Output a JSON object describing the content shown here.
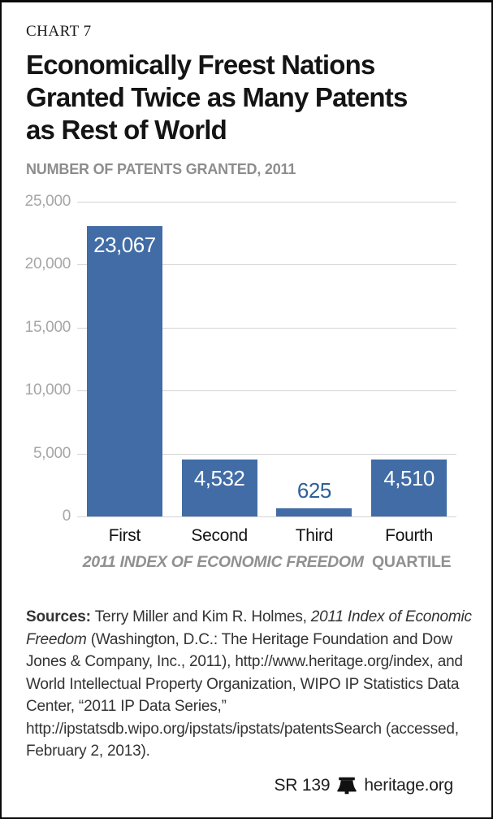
{
  "card": {
    "kicker": "CHART 7",
    "title_lines": [
      "Economically Freest Nations",
      "Granted Twice as Many Patents",
      "as Rest of World"
    ],
    "subtitle": "NUMBER OF PATENTS GRANTED, 2011"
  },
  "chart_data": {
    "type": "bar",
    "title": "Economically Freest Nations Granted Twice as Many Patents as Rest of World",
    "subtitle": "NUMBER OF PATENTS GRANTED, 2011",
    "categories": [
      "First",
      "Second",
      "Third",
      "Fourth"
    ],
    "values": [
      23067,
      4532,
      625,
      4510
    ],
    "value_labels": [
      "23,067",
      "4,532",
      "625",
      "4,510"
    ],
    "xlabel_italic": "2011 INDEX OF ECONOMIC FREEDOM",
    "xlabel_regular": "QUARTILE",
    "ylabel": "",
    "ylim": [
      0,
      25000
    ],
    "yticks": [
      {
        "value": 25000,
        "label": "25,000"
      },
      {
        "value": 20000,
        "label": "20,000"
      },
      {
        "value": 15000,
        "label": "15,000"
      },
      {
        "value": 10000,
        "label": "10,000"
      },
      {
        "value": 5000,
        "label": "5,000"
      },
      {
        "value": 0,
        "label": "0"
      }
    ],
    "grid": true,
    "legend": false,
    "bar_color": "#416ca6",
    "inside_label_color": "#ffffff",
    "outside_label_color": "#2e6097",
    "gridline_color": "#d3d3d3",
    "tick_label_color": "#a6a6a6"
  },
  "sources": {
    "segments": [
      {
        "text": "Sources: ",
        "bold": true
      },
      {
        "text": "Terry Miller and Kim R. Holmes, "
      },
      {
        "text": "2011 Index of Economic Freedom",
        "italic": true
      },
      {
        "text": " (Washington, D.C.: The Heritage Foundation and Dow Jones & Company, Inc., 2011), http://www.heritage.org/index, and World Intellectual Property Organization, WIPO IP Statistics Data Center, “2011 IP Data Series,” http://ipstatsdb.wipo.org/ipstats/ipstats/patentsSearch (accessed, February 2, 2013)."
      }
    ]
  },
  "footer": {
    "report_id": "SR 139",
    "site": "heritage.org",
    "bell_icon": "liberty-bell"
  }
}
